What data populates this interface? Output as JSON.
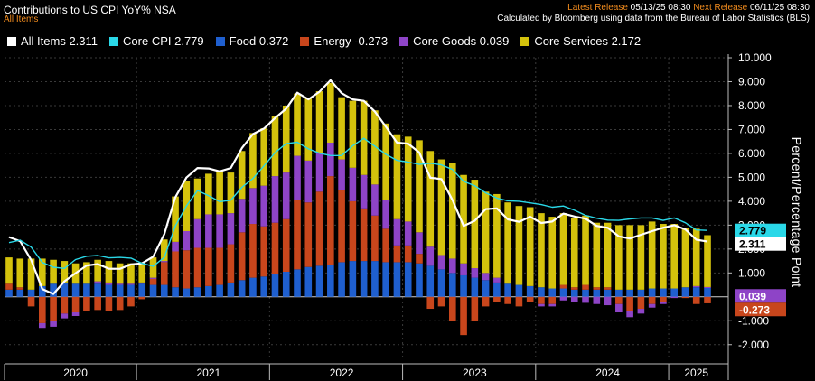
{
  "header": {
    "title": "Contributions to US CPI YoY% NSA",
    "subtitle": "All Items",
    "latest_label": "Latest Release",
    "latest_value": "05/13/25 08:30",
    "next_label": "Next Release",
    "next_value": "06/11/25 08:30",
    "source": "Calculated by Bloomberg using data from the Bureau of Labor Statistics (BLS)"
  },
  "legend": [
    {
      "label": "All Items 2.311",
      "color": "#ffffff"
    },
    {
      "label": "Core CPI 2.779",
      "color": "#2ad8e8"
    },
    {
      "label": "Food 0.372",
      "color": "#1f5fcf"
    },
    {
      "label": "Energy -0.273",
      "color": "#c8461c"
    },
    {
      "label": "Core Goods 0.039",
      "color": "#8e44c7"
    },
    {
      "label": "Core Services 2.172",
      "color": "#d4c20c"
    }
  ],
  "chart_data": {
    "type": "bar",
    "title": "Contributions to US CPI YoY% NSA",
    "ylabel": "Percent/Percentage Point",
    "ylim": [
      -2.5,
      10.0
    ],
    "yticks": [
      "-2.000",
      "-1.000",
      "1.000",
      "2.000",
      "3.000",
      "4.000",
      "5.000",
      "6.000",
      "7.000",
      "8.000",
      "9.000",
      "10.000"
    ],
    "x_year_labels": [
      "2020",
      "2021",
      "2022",
      "2023",
      "2024",
      "2025"
    ],
    "categories": [
      "2020-01",
      "2020-02",
      "2020-03",
      "2020-04",
      "2020-05",
      "2020-06",
      "2020-07",
      "2020-08",
      "2020-09",
      "2020-10",
      "2020-11",
      "2020-12",
      "2021-01",
      "2021-02",
      "2021-03",
      "2021-04",
      "2021-05",
      "2021-06",
      "2021-07",
      "2021-08",
      "2021-09",
      "2021-10",
      "2021-11",
      "2021-12",
      "2022-01",
      "2022-02",
      "2022-03",
      "2022-04",
      "2022-05",
      "2022-06",
      "2022-07",
      "2022-08",
      "2022-09",
      "2022-10",
      "2022-11",
      "2022-12",
      "2023-01",
      "2023-02",
      "2023-03",
      "2023-04",
      "2023-05",
      "2023-06",
      "2023-07",
      "2023-08",
      "2023-09",
      "2023-10",
      "2023-11",
      "2023-12",
      "2024-01",
      "2024-02",
      "2024-03",
      "2024-04",
      "2024-05",
      "2024-06",
      "2024-07",
      "2024-08",
      "2024-09",
      "2024-10",
      "2024-11",
      "2024-12",
      "2025-01",
      "2025-02",
      "2025-03",
      "2025-04"
    ],
    "stacked_series": [
      {
        "name": "Food",
        "color": "#1f5fcf",
        "values": [
          0.3,
          0.3,
          0.3,
          0.45,
          0.55,
          0.6,
          0.55,
          0.55,
          0.55,
          0.5,
          0.5,
          0.5,
          0.55,
          0.5,
          0.5,
          0.4,
          0.35,
          0.4,
          0.45,
          0.5,
          0.6,
          0.7,
          0.8,
          0.85,
          0.95,
          1.05,
          1.15,
          1.25,
          1.3,
          1.35,
          1.45,
          1.5,
          1.5,
          1.5,
          1.45,
          1.45,
          1.45,
          1.4,
          1.3,
          1.15,
          1.0,
          0.9,
          0.8,
          0.7,
          0.6,
          0.55,
          0.5,
          0.45,
          0.4,
          0.35,
          0.35,
          0.3,
          0.3,
          0.3,
          0.3,
          0.3,
          0.3,
          0.3,
          0.35,
          0.35,
          0.35,
          0.4,
          0.4,
          0.37
        ]
      },
      {
        "name": "Energy",
        "color": "#c8461c",
        "values": [
          0.25,
          0.1,
          -0.4,
          -1.1,
          -1.0,
          -0.7,
          -0.65,
          -0.6,
          -0.55,
          -0.6,
          -0.55,
          -0.4,
          -0.1,
          0.25,
          0.95,
          1.5,
          1.6,
          1.65,
          1.6,
          1.55,
          1.6,
          2.0,
          2.25,
          2.1,
          2.15,
          2.2,
          2.9,
          2.7,
          3.1,
          3.7,
          3.0,
          2.5,
          2.2,
          1.9,
          1.4,
          0.7,
          0.7,
          0.4,
          -0.5,
          -0.4,
          -1.0,
          -1.6,
          -1.0,
          -0.4,
          -0.2,
          -0.3,
          -0.4,
          -0.2,
          -0.3,
          -0.3,
          0.15,
          0.1,
          0.2,
          0.1,
          0.1,
          -0.3,
          -0.6,
          -0.5,
          -0.3,
          -0.2,
          0.0,
          -0.05,
          -0.3,
          -0.27
        ]
      },
      {
        "name": "Core Goods",
        "color": "#8e44c7",
        "values": [
          0.0,
          0.0,
          0.0,
          -0.2,
          -0.25,
          -0.2,
          -0.15,
          0.0,
          0.1,
          0.1,
          0.05,
          0.05,
          0.05,
          0.05,
          0.05,
          0.4,
          0.8,
          1.2,
          1.4,
          1.4,
          1.3,
          1.4,
          1.5,
          1.7,
          1.95,
          1.95,
          1.85,
          1.75,
          1.6,
          1.4,
          1.3,
          1.4,
          1.4,
          1.3,
          1.2,
          1.1,
          1.0,
          0.9,
          0.8,
          0.6,
          0.6,
          0.5,
          0.4,
          0.3,
          0.2,
          0.0,
          0.0,
          0.0,
          -0.1,
          -0.1,
          -0.15,
          -0.2,
          -0.25,
          -0.3,
          -0.35,
          -0.35,
          -0.25,
          -0.2,
          -0.15,
          -0.1,
          -0.05,
          0.0,
          0.05,
          0.04
        ]
      },
      {
        "name": "Core Services",
        "color": "#d4c20c",
        "values": [
          1.1,
          1.2,
          1.3,
          1.15,
          1.0,
          0.9,
          0.85,
          0.9,
          0.9,
          0.9,
          0.85,
          0.85,
          0.85,
          0.85,
          0.9,
          1.9,
          2.1,
          1.7,
          1.7,
          1.8,
          1.7,
          2.0,
          2.3,
          2.4,
          2.5,
          2.8,
          2.6,
          2.6,
          2.6,
          2.5,
          2.6,
          2.8,
          3.1,
          3.1,
          3.2,
          3.55,
          3.55,
          3.85,
          4.0,
          4.0,
          4.0,
          3.7,
          3.7,
          3.4,
          3.5,
          3.4,
          3.3,
          3.3,
          3.1,
          3.0,
          3.0,
          2.9,
          2.9,
          2.7,
          2.7,
          2.7,
          2.7,
          2.7,
          2.8,
          2.7,
          2.7,
          2.5,
          2.4,
          2.17
        ]
      }
    ],
    "line_series": [
      {
        "name": "All Items",
        "color": "#ffffff",
        "values": [
          2.5,
          2.33,
          1.54,
          0.33,
          0.12,
          0.65,
          0.99,
          1.31,
          1.37,
          1.18,
          1.17,
          1.36,
          1.4,
          1.68,
          2.62,
          4.16,
          4.99,
          5.39,
          5.37,
          5.25,
          5.39,
          6.22,
          6.81,
          7.04,
          7.48,
          7.87,
          8.54,
          8.26,
          8.58,
          9.06,
          8.52,
          8.26,
          8.2,
          7.75,
          7.11,
          6.45,
          6.41,
          6.04,
          4.98,
          4.93,
          4.05,
          2.97,
          3.18,
          3.67,
          3.7,
          3.24,
          3.14,
          3.35,
          3.09,
          3.15,
          3.48,
          3.36,
          3.27,
          2.97,
          2.89,
          2.53,
          2.44,
          2.6,
          2.75,
          2.89,
          3.0,
          2.82,
          2.39,
          2.31
        ]
      },
      {
        "name": "Core CPI",
        "color": "#2ad8e8",
        "values": [
          2.27,
          2.37,
          2.08,
          1.44,
          1.24,
          1.19,
          1.56,
          1.7,
          1.73,
          1.63,
          1.65,
          1.62,
          1.4,
          1.28,
          1.65,
          2.96,
          3.8,
          4.45,
          4.23,
          3.98,
          4.04,
          4.58,
          4.95,
          5.48,
          6.04,
          6.41,
          6.47,
          6.19,
          6.01,
          5.91,
          5.91,
          6.32,
          6.63,
          6.3,
          5.96,
          5.71,
          5.64,
          5.54,
          5.59,
          5.52,
          5.33,
          4.83,
          4.65,
          4.35,
          4.13,
          4.02,
          4.0,
          3.93,
          3.86,
          3.75,
          3.8,
          3.62,
          3.41,
          3.29,
          3.21,
          3.2,
          3.26,
          3.3,
          3.3,
          3.2,
          3.3,
          3.1,
          2.8,
          2.78
        ]
      }
    ],
    "end_labels": [
      {
        "text": "2.779",
        "value": 2.779,
        "bg": "#2ad8e8",
        "fg": "#000000"
      },
      {
        "text": "2.311",
        "value": 2.311,
        "bg": "#ffffff",
        "fg": "#000000"
      },
      {
        "text": "0.039",
        "value": 0.039,
        "bg": "#8e44c7",
        "fg": "#ffffff"
      },
      {
        "text": "-0.273",
        "value": -0.273,
        "bg": "#c8461c",
        "fg": "#ffffff"
      }
    ],
    "grid": true,
    "legend_position": "top-left"
  }
}
